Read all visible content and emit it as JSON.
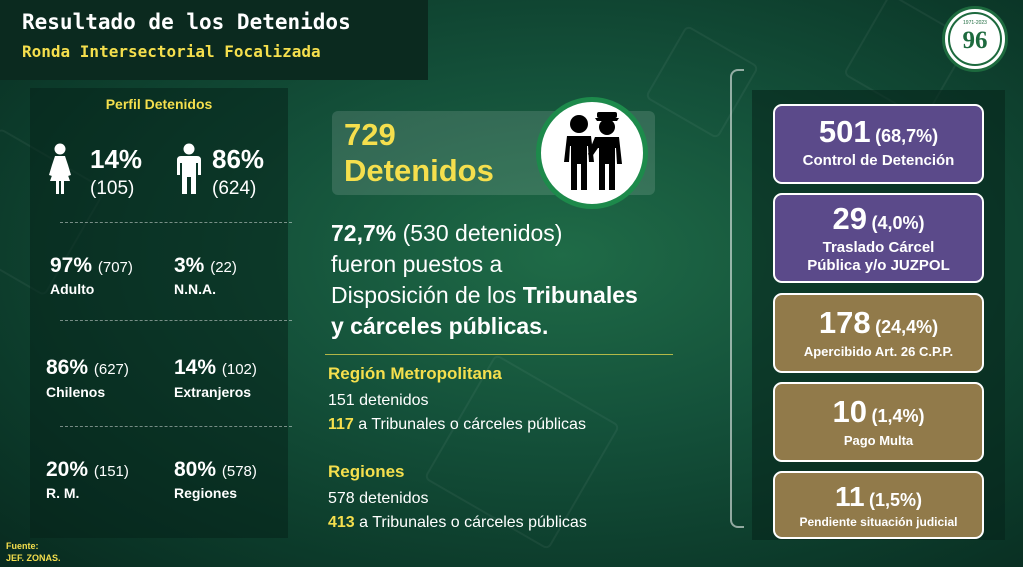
{
  "header": {
    "title": "Resultado de los Detenidos",
    "subtitle": "Ronda Intersectorial Focalizada"
  },
  "logo": {
    "number": "96",
    "text": "1971-2023"
  },
  "profile": {
    "title": "Perfil Detenidos",
    "female": {
      "pct": "14%",
      "count": "(105)",
      "icon": "female-icon"
    },
    "male": {
      "pct": "86%",
      "count": "(624)",
      "icon": "male-icon"
    },
    "rows": [
      [
        {
          "pct": "97%",
          "count": "(707)",
          "label": "Adulto"
        },
        {
          "pct": "3%",
          "count": "(22)",
          "label": "N.N.A."
        }
      ],
      [
        {
          "pct": "86%",
          "count": "(627)",
          "label": "Chilenos"
        },
        {
          "pct": "14%",
          "count": "(102)",
          "label": "Extranjeros"
        }
      ],
      [
        {
          "pct": "20%",
          "count": "(151)",
          "label": "R. M."
        },
        {
          "pct": "80%",
          "count": "(578)",
          "label": "Regiones"
        }
      ]
    ]
  },
  "total": {
    "number": "729",
    "label": "Detenidos",
    "icon": "detainee-officer-icon"
  },
  "summary": {
    "pct": "72,7%",
    "count": "(530 detenidos)",
    "line2": "fueron puestos a",
    "line3a": "Disposición de los ",
    "line3b": "Tribunales",
    "line4": "y cárceles públicas."
  },
  "regions": [
    {
      "title": "Región Metropolitana",
      "detenidos": "151 detenidos",
      "tribunales_num": "117",
      "tribunales_text": " a Tribunales o cárceles públicas"
    },
    {
      "title": "Regiones",
      "detenidos": "578 detenidos",
      "tribunales_num": "413",
      "tribunales_text": " a Tribunales o cárceles públicas"
    }
  ],
  "outcomes": [
    {
      "number": "501",
      "pct": "(68,7%)",
      "label": "Control de Detención",
      "color": "#5b4a8a"
    },
    {
      "number": "29",
      "pct": "(4,0%)",
      "label": "Traslado Cárcel Pública y/o JUZPOL",
      "color": "#5b4a8a"
    },
    {
      "number": "178",
      "pct": "(24,4%)",
      "label": "Apercibido Art. 26 C.P.P.",
      "color": "#917a4a"
    },
    {
      "number": "10",
      "pct": "(1,4%)",
      "label": "Pago Multa",
      "color": "#917a4a"
    },
    {
      "number": "11",
      "pct": "(1,5%)",
      "label": "Pendiente situación judicial",
      "color": "#917a4a"
    }
  ],
  "source": {
    "label": "Fuente:",
    "value": "JEF. ZONAS."
  }
}
